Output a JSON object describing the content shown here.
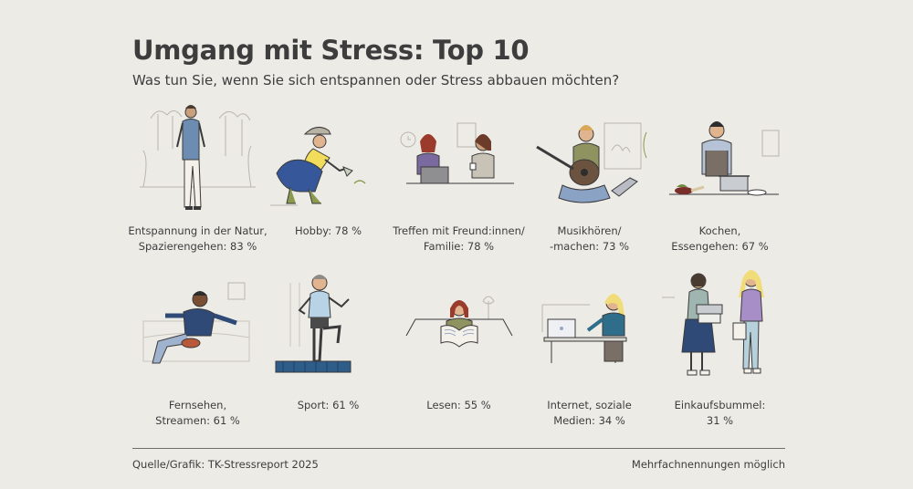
{
  "title": "Umgang mit Stress: Top 10",
  "subtitle": "Was tun Sie, wenn Sie sich entspannen oder Stress abbauen möchten?",
  "items": [
    {
      "label_line1": "Entspannung in der Natur,",
      "label_line2": "Spazierengehen: 83 %",
      "percent": 83
    },
    {
      "label_line1": "Hobby: 78 %",
      "label_line2": "",
      "percent": 78
    },
    {
      "label_line1": "Treffen mit Freund:innen/",
      "label_line2": "Familie: 78 %",
      "percent": 78
    },
    {
      "label_line1": "Musikhören/",
      "label_line2": "-machen: 73 %",
      "percent": 73
    },
    {
      "label_line1": "Kochen,",
      "label_line2": "Essengehen: 67 %",
      "percent": 67
    },
    {
      "label_line1": "Fernsehen,",
      "label_line2": "Streamen: 61 %",
      "percent": 61
    },
    {
      "label_line1": "Sport: 61 %",
      "label_line2": "",
      "percent": 61
    },
    {
      "label_line1": "Lesen: 55 %",
      "label_line2": "",
      "percent": 55
    },
    {
      "label_line1": "Internet, soziale",
      "label_line2": "Medien: 34 %",
      "percent": 34
    },
    {
      "label_line1": "Einkaufsbummel:",
      "label_line2": "31 %",
      "percent": 31
    }
  ],
  "footer": {
    "source": "Quelle/Grafik: TK-Stressreport 2025",
    "note": "Mehrfachnennungen möglich"
  }
}
